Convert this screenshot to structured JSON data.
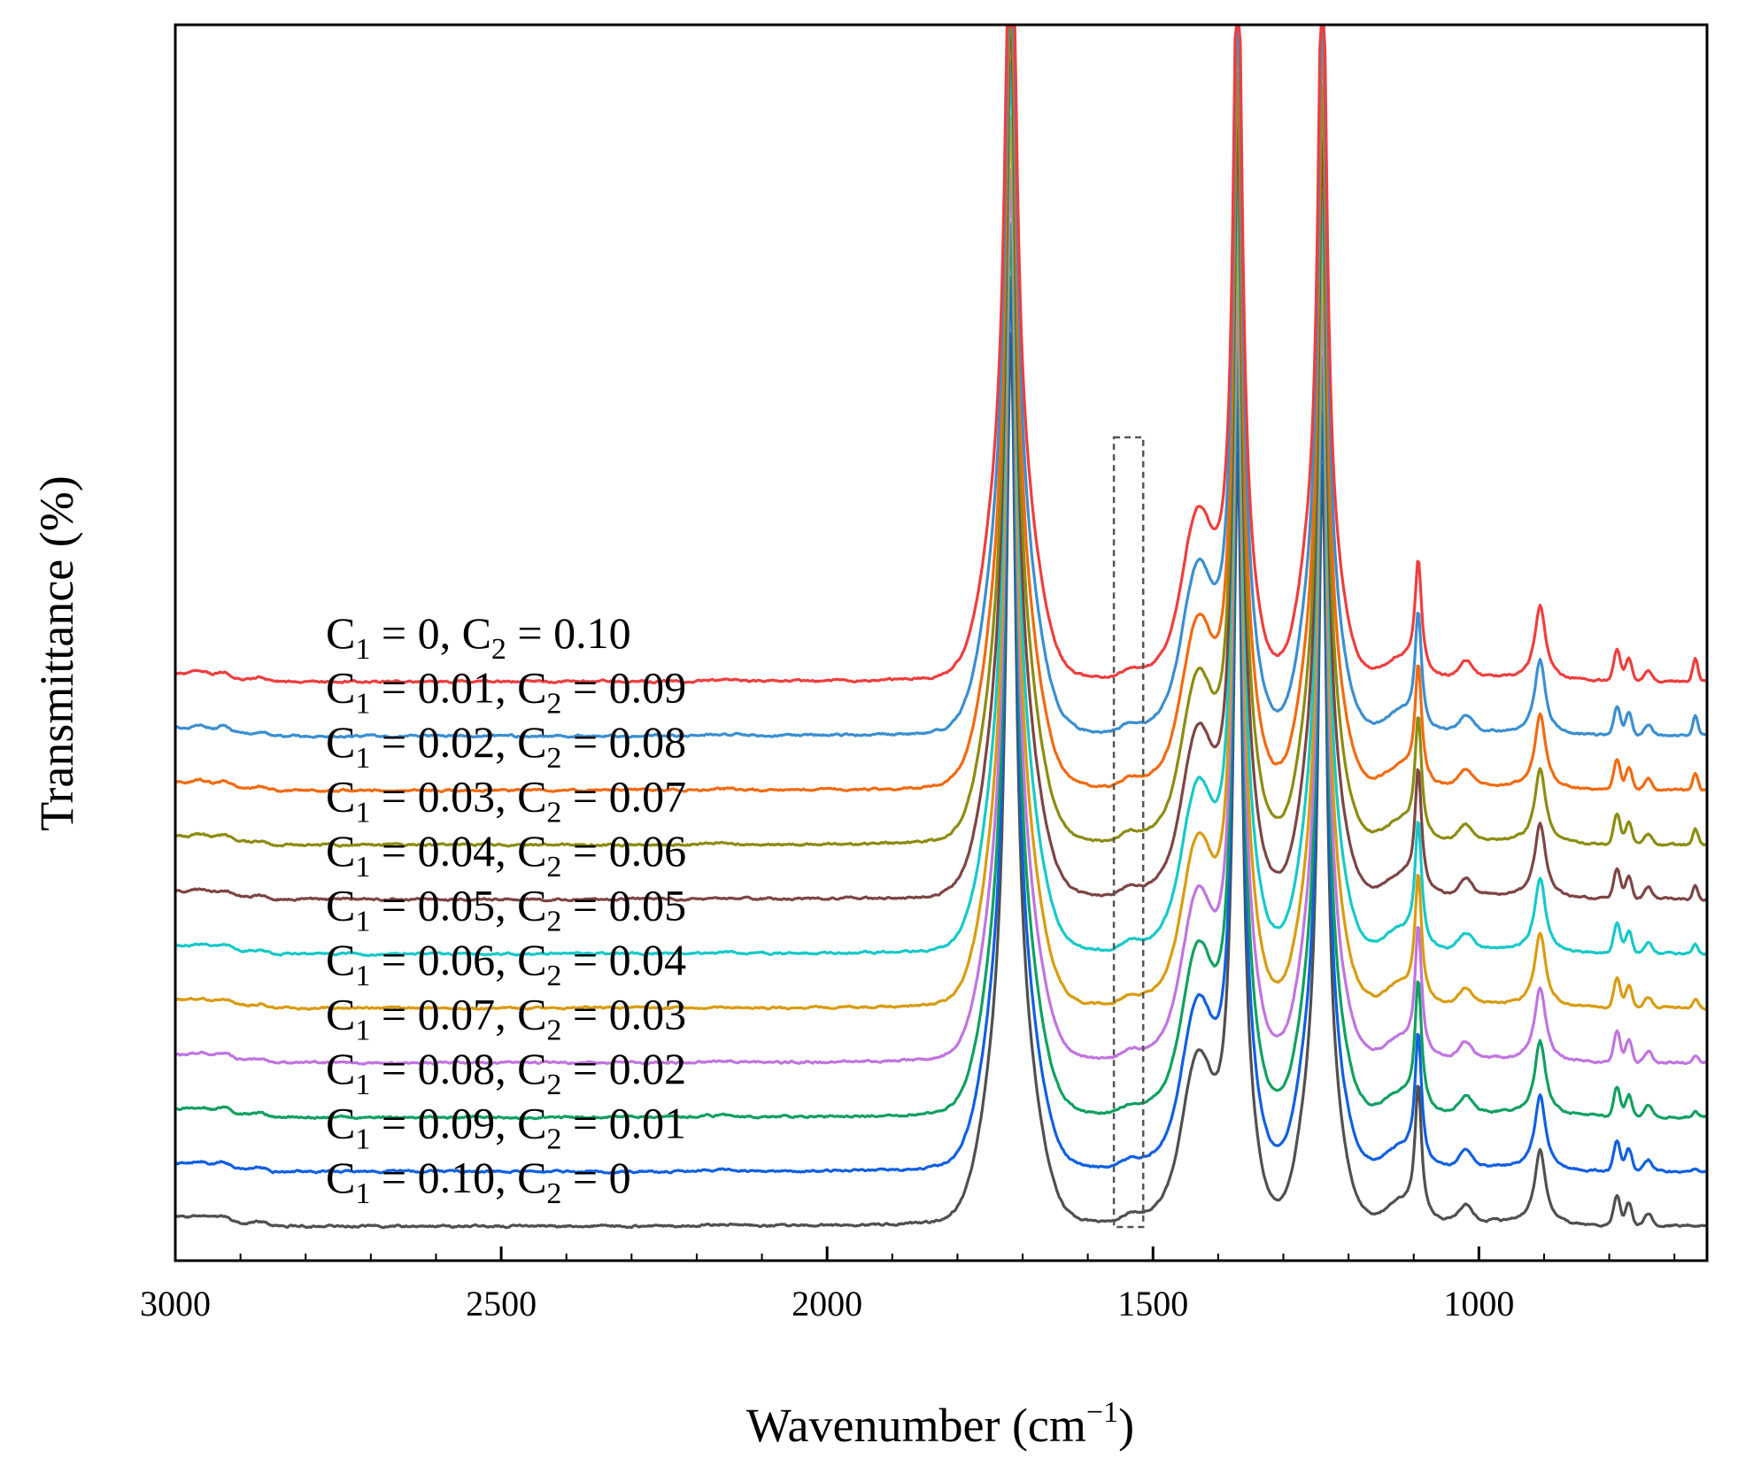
{
  "chart_data": {
    "type": "line",
    "title": "",
    "xlabel": "Wavenumber (cm",
    "xlabel_sup": "−1",
    "xlabel_close": ")",
    "ylabel": "Transmittance (%)",
    "xlim": [
      3000,
      650
    ],
    "xticks": [
      3000,
      2500,
      2000,
      1500,
      1000
    ],
    "x_reversed": true,
    "y_ticks_shown": false,
    "grid": false,
    "highlight_box": {
      "x_range": [
        1560,
        1515
      ],
      "style": "dashed"
    },
    "peaks_cm1": [
      1718,
      1430,
      1370,
      1240,
      1093,
      906,
      788,
      770,
      668
    ],
    "series": [
      {
        "name": "C1 = 0, C2 = 0.10",
        "c1": "0",
        "c2": "0.10",
        "color": "#ee3e3e",
        "offset": 10
      },
      {
        "name": "C1 = 0.01, C2 = 0.09",
        "c1": "0.01",
        "c2": "0.09",
        "color": "#3a8fd0",
        "offset": 9
      },
      {
        "name": "C1 = 0.02, C2 = 0.08",
        "c1": "0.02",
        "c2": "0.08",
        "color": "#f26a10",
        "offset": 8
      },
      {
        "name": "C1 = 0.03, C2 = 0.07",
        "c1": "0.03",
        "c2": "0.07",
        "color": "#8c8c10",
        "offset": 7
      },
      {
        "name": "C1 = 0.04, C2 = 0.06",
        "c1": "0.04",
        "c2": "0.06",
        "color": "#7d4545",
        "offset": 6
      },
      {
        "name": "C1 = 0.05, C2 = 0.05",
        "c1": "0.05",
        "c2": "0.05",
        "color": "#18c8c8",
        "offset": 5
      },
      {
        "name": "C1 = 0.06, C2 = 0.04",
        "c1": "0.06",
        "c2": "0.04",
        "color": "#d89c10",
        "offset": 4
      },
      {
        "name": "C1 = 0.07, C2 = 0.03",
        "c1": "0.07",
        "c2": "0.03",
        "color": "#c074e0",
        "offset": 3
      },
      {
        "name": "C1 = 0.08, C2 = 0.02",
        "c1": "0.08",
        "c2": "0.02",
        "color": "#10a060",
        "offset": 2
      },
      {
        "name": "C1 = 0.09, C2 = 0.01",
        "c1": "0.09",
        "c2": "0.01",
        "color": "#1060e0",
        "offset": 1
      },
      {
        "name": "C1 = 0.10, C2 = 0",
        "c1": "0.10",
        "c2": "0",
        "color": "#505050",
        "offset": 0
      }
    ]
  }
}
